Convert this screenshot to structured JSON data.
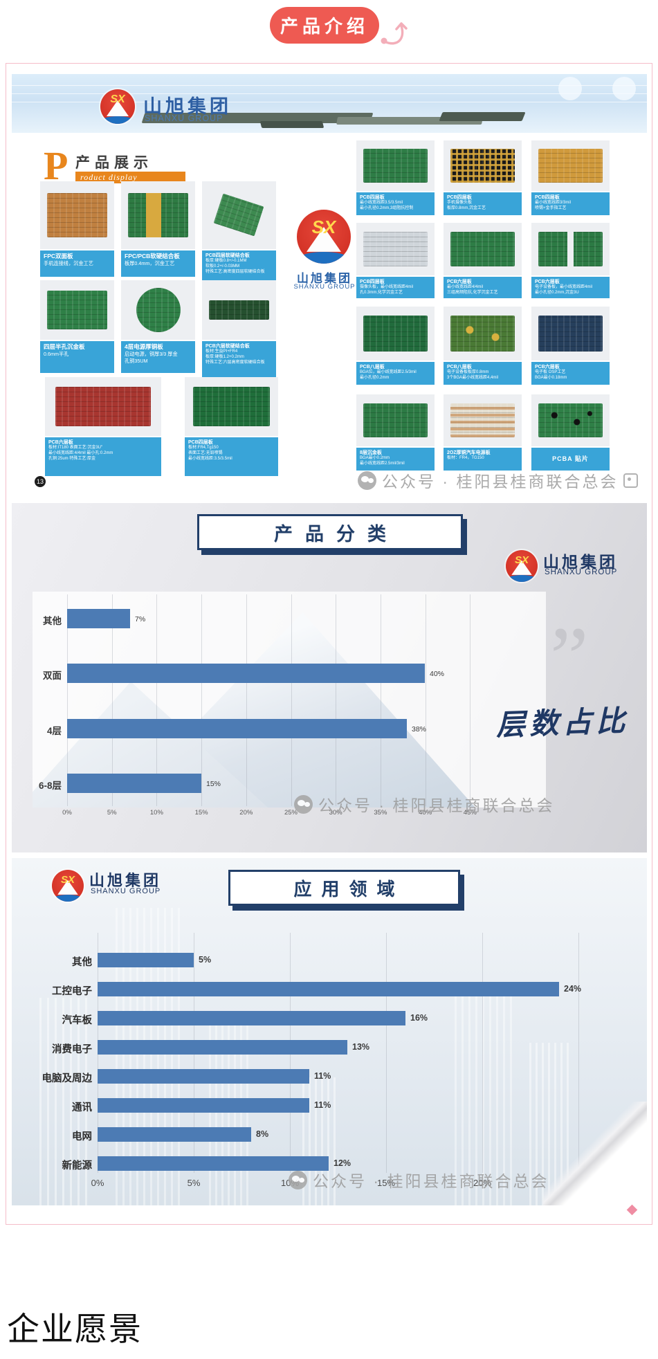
{
  "page": {
    "vision_heading": "企业愿景"
  },
  "intro_button": {
    "label": "产品介绍"
  },
  "brand": {
    "abbr": "SX",
    "name_cn": "山旭集团",
    "name_en": "SHANXU GROUP"
  },
  "watermark": {
    "text": "公众号 · 桂阳县桂商联合总会"
  },
  "product_display": {
    "title_initial": "P",
    "title_cn": "产品展示",
    "title_en": "roduct display",
    "page_badge": "13",
    "left_grid": [
      {
        "img": "fpc-orange-board-photo",
        "title": "FPC双面板",
        "lines": [
          "手机连接线，沉金工艺"
        ]
      },
      {
        "img": "rigid-flex-green-board-photo",
        "title": "FPC/PCB软硬结合板",
        "lines": [
          "板厚0.4mm，沉金工艺"
        ]
      },
      {
        "img": "rigid-flex-small-boards-photo",
        "title": "PCB四层软硬结合板",
        "lines": [
          "板厚:硬板0.8+/-0.1MM",
          "软板0.2+/-0.03MM",
          "特殊工艺:高密度四层软硬结合板"
        ]
      },
      {
        "img": "green-halfhole-board-photo",
        "title": "四层半孔沉金板",
        "lines": [
          "0.6mm半孔"
        ]
      },
      {
        "img": "round-power-board-photo",
        "title": "4层电源厚铜板",
        "lines": [
          "启动电源，铜厚3/3 厚金",
          "孔铜35UM"
        ]
      },
      {
        "img": "six-layer-rigid-flex-photo",
        "title": "PCB六层软硬结合板",
        "lines": [
          "板材:生益PI+FR4",
          "板厚:硬板1.2+0.2mm",
          "特殊工艺:六层高密度软硬结合板"
        ]
      },
      {
        "img": "red-board-photo",
        "title": "PCB六层板",
        "lines": [
          "板材:IT180 表面工艺:沉金3U\"",
          "最小线宽线距:4/4mil 最小孔:0.2mm",
          "孔铜:25um 特殊工艺:厚金"
        ]
      },
      {
        "img": "long-green-board-photo",
        "title": "PCB四层板",
        "lines": [
          "板材:FR4,Tg150",
          "表面工艺:无铅喷锡",
          "最小线宽线距:3.5/3.5mil"
        ]
      }
    ],
    "right_grid": [
      {
        "img": "green-board-photo",
        "title": "PCB四层板",
        "lines": [
          "最小线宽线距3.5/3.5mil",
          "最小孔径0.2mm,3组阻抗控制"
        ]
      },
      {
        "img": "black-bga-array-photo",
        "title": "PCB四层板",
        "lines": [
          "手机摄像头板",
          "板厚0.8mm,沉金工艺"
        ]
      },
      {
        "img": "gold-finger-board-photo",
        "title": "PCB四层板",
        "lines": [
          "最小线宽线距3/3mil",
          "喷锡+金手指工艺"
        ]
      },
      {
        "img": "silver-panel-array-photo",
        "title": "PCB四层板",
        "lines": [
          "摄像头板，最小线宽线距4mil",
          "孔0.3mm,化学沉金工艺"
        ]
      },
      {
        "img": "green-module-board-photo",
        "title": "PCB六层板",
        "lines": [
          "最小线宽线距4/4mil",
          "三组高频阻抗,化学沉金工艺"
        ]
      },
      {
        "img": "two-green-boards-photo",
        "title": "PCB六层板",
        "lines": [
          "电子设备板，最小线宽线距4mil",
          "最小孔径0.2mm,沉金3U"
        ]
      },
      {
        "img": "dense-green-board-photo",
        "title": "PCB八层板",
        "lines": [
          "BGA位，最小线宽线距2.5/3mil",
          "最小孔径0.2mm"
        ]
      },
      {
        "img": "gold-green-board-photo",
        "title": "PCB八层板",
        "lines": [
          "电子设备板板厚0.8mm",
          "3个BGA最小线宽线距4,4mil"
        ]
      },
      {
        "img": "blue-board-photo",
        "title": "PCB六层板",
        "lines": [
          "电子板  OSP工艺",
          "BGA最小0.18mm"
        ]
      },
      {
        "img": "eight-layer-gold-board-photo",
        "title": "8层沉金板",
        "lines": [
          "BGA最小0.2mm",
          "最小线宽线距2.5mil/3mil"
        ]
      },
      {
        "img": "copper-auto-power-board-photo",
        "title": "2OZ厚铜汽车电源板",
        "lines": [
          "板材：FR4，TG150"
        ]
      },
      {
        "img": "pcba-assembled-board-photo",
        "title": "PCBA 贴片",
        "lines": []
      }
    ]
  },
  "chart_data": [
    {
      "type": "bar",
      "orientation": "horizontal",
      "title": "产品分类",
      "annotation": "层数占比",
      "categories": [
        "其他",
        "双面",
        "4层",
        "6-8层"
      ],
      "values": [
        7,
        40,
        38,
        15
      ],
      "value_labels": [
        "7%",
        "40%",
        "38%",
        "15%"
      ],
      "x_ticks": [
        "0%",
        "5%",
        "10%",
        "15%",
        "20%",
        "25%",
        "30%",
        "35%",
        "40%",
        "45%"
      ],
      "xlim": [
        0,
        45
      ],
      "grid": true,
      "legend": false,
      "bar_color": "#4c7bb4"
    },
    {
      "type": "bar",
      "orientation": "horizontal",
      "title": "应用领域",
      "categories": [
        "其他",
        "工控电子",
        "汽车板",
        "消费电子",
        "电脑及周边",
        "通讯",
        "电网",
        "新能源"
      ],
      "values": [
        5,
        24,
        16,
        13,
        11,
        11,
        8,
        12
      ],
      "value_labels": [
        "5%",
        "24%",
        "16%",
        "13%",
        "11%",
        "11%",
        "8%",
        "12%"
      ],
      "x_ticks": [
        "0%",
        "5%",
        "10%",
        "15%",
        "20%",
        "25%"
      ],
      "xlim": [
        0,
        25
      ],
      "grid": true,
      "legend": false,
      "bar_color": "#4c7bb4"
    }
  ],
  "colors": {
    "accent_red": "#ee5a52",
    "navy": "#223f69",
    "bar_blue": "#4c7bb4",
    "label_blue": "#39a4d8",
    "orange": "#e8861d",
    "frame_pink": "#f5bcc9"
  }
}
